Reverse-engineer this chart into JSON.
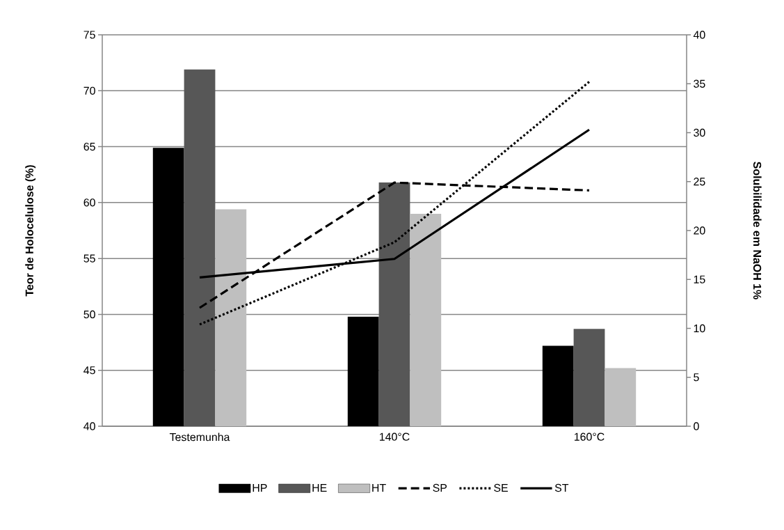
{
  "chart_data": {
    "type": "bar",
    "categories": [
      "Testemunha",
      "140°C",
      "160°C"
    ],
    "ylabel": "Teor de Holocelulose (%)",
    "y2label": "Solubilidade em NaOH 1%",
    "ylim": [
      40,
      75
    ],
    "yticks": [
      40,
      45,
      50,
      55,
      60,
      65,
      70,
      75
    ],
    "y2lim": [
      0,
      40
    ],
    "y2ticks": [
      0,
      5,
      10,
      15,
      20,
      25,
      30,
      35,
      40
    ],
    "grid": "y",
    "legend": "bottom",
    "series": [
      {
        "name": "HP",
        "color": "#000000",
        "values": [
          64.9,
          49.8,
          47.2
        ]
      },
      {
        "name": "HE",
        "color": "#575757",
        "values": [
          71.9,
          61.8,
          48.7
        ]
      },
      {
        "name": "HT",
        "color": "#bfbfbf",
        "values": [
          59.4,
          59.0,
          45.2
        ]
      },
      {
        "name": "SP",
        "type": "line",
        "axis": "y2",
        "line_style": "dashed",
        "color": "#000000",
        "values": [
          12.1,
          24.9,
          24.1
        ]
      },
      {
        "name": "SE",
        "type": "line",
        "axis": "y2",
        "line_style": "dotted",
        "color": "#000000",
        "values": [
          10.4,
          18.8,
          35.2
        ]
      },
      {
        "name": "ST",
        "type": "line",
        "axis": "y2",
        "line_style": "solid",
        "color": "#000000",
        "values": [
          15.2,
          17.1,
          30.3
        ]
      }
    ]
  }
}
